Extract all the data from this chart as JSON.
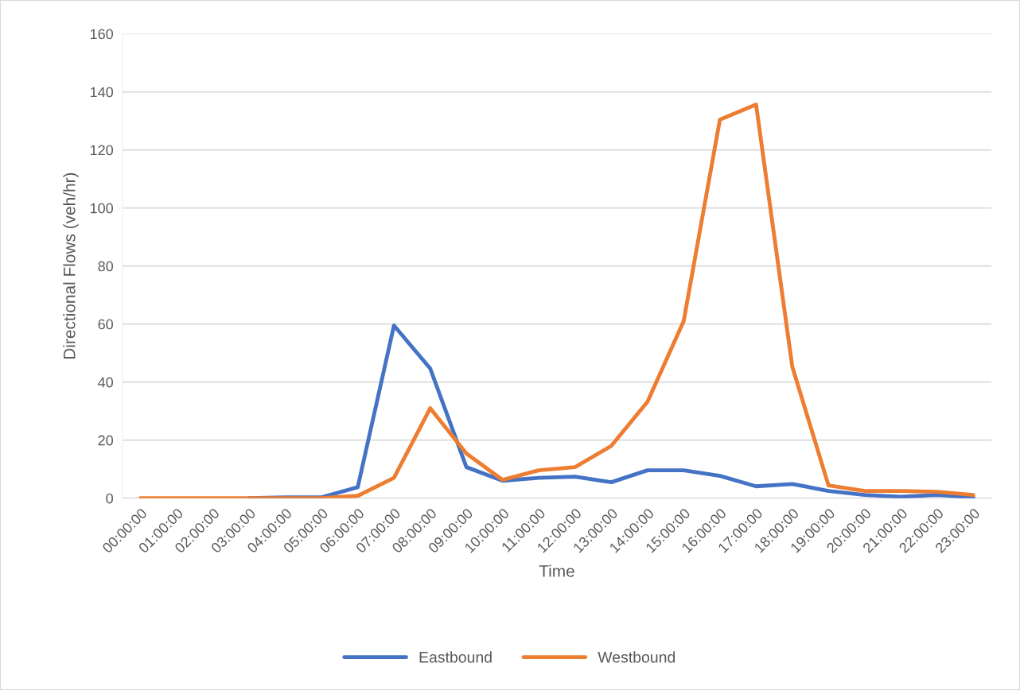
{
  "chart_data": {
    "type": "line",
    "xlabel": "Time",
    "ylabel": "Directional Flows (veh/hr)",
    "categories": [
      "00:00:00",
      "01:00:00",
      "02:00:00",
      "03:00:00",
      "04:00:00",
      "05:00:00",
      "06:00:00",
      "07:00:00",
      "08:00:00",
      "09:00:00",
      "10:00:00",
      "11:00:00",
      "12:00:00",
      "13:00:00",
      "14:00:00",
      "15:00:00",
      "16:00:00",
      "17:00:00",
      "18:00:00",
      "19:00:00",
      "20:00:00",
      "21:00:00",
      "22:00:00",
      "23:00:00"
    ],
    "series": [
      {
        "name": "Eastbound",
        "color": "#4472c4",
        "values": [
          null,
          null,
          null,
          0,
          0.3,
          0.3,
          3.8,
          59.5,
          44.7,
          10.7,
          6,
          7,
          7.4,
          5.5,
          9.6,
          9.6,
          7.7,
          4.1,
          4.9,
          2.5,
          1.1,
          0.5,
          1.1,
          0.3
        ]
      },
      {
        "name": "Westbound",
        "color": "#ed7d31",
        "values": [
          0,
          0,
          0,
          0,
          0,
          0,
          0.8,
          7,
          31,
          15.4,
          6.3,
          9.6,
          10.7,
          18,
          33.2,
          61,
          130.4,
          135.6,
          45.3,
          4.4,
          2.5,
          2.5,
          2.2,
          1.1
        ]
      }
    ],
    "ylim": [
      0,
      160
    ],
    "yticks": [
      0,
      20,
      40,
      60,
      80,
      100,
      120,
      140,
      160
    ],
    "grid": "y",
    "legend": "bottom",
    "marker": "none",
    "line_style": "solid"
  }
}
